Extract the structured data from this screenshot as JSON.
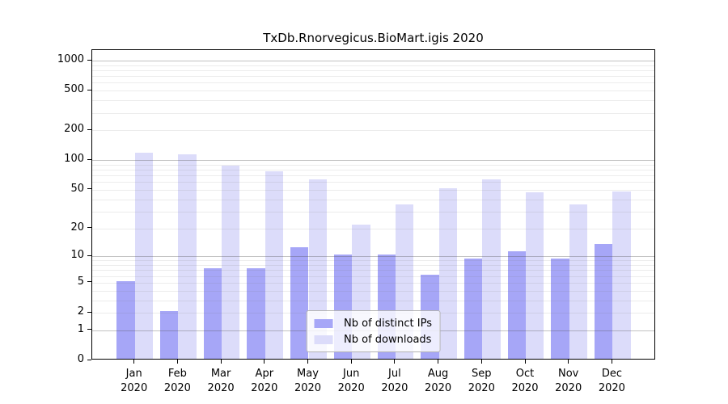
{
  "chart_data": {
    "type": "bar",
    "title": "TxDb.Rnorvegicus.BioMart.igis 2020",
    "scale": "log10(value+1)",
    "categories": [
      "Jan 2020",
      "Feb 2020",
      "Mar 2020",
      "Apr 2020",
      "May 2020",
      "Jun 2020",
      "Jul 2020",
      "Aug 2020",
      "Sep 2020",
      "Oct 2020",
      "Nov 2020",
      "Dec 2020"
    ],
    "series": [
      {
        "name": "Nb of distinct IPs",
        "values": [
          5,
          2,
          7,
          7,
          12,
          10,
          10,
          6,
          9,
          11,
          9,
          13
        ]
      },
      {
        "name": "Nb of downloads",
        "values": [
          115,
          110,
          85,
          74,
          61,
          21,
          34,
          50,
          61,
          45,
          34,
          46
        ]
      }
    ],
    "y_ticks": [
      0,
      1,
      2,
      5,
      10,
      20,
      50,
      100,
      200,
      500,
      1000
    ],
    "ylim": [
      0,
      1270
    ],
    "xlabel": "",
    "ylabel": "",
    "grid": true,
    "legend_position": "lower center inside",
    "colors": {
      "distinct_ips_bar": "#a6a6f7",
      "downloads_bar": "#dcdcfa",
      "grid_major": "rgba(80,80,80,0.35)",
      "grid_minor": "rgba(120,120,120,0.14)",
      "axis": "#000000",
      "legend_border": "#b3b3b3"
    }
  }
}
